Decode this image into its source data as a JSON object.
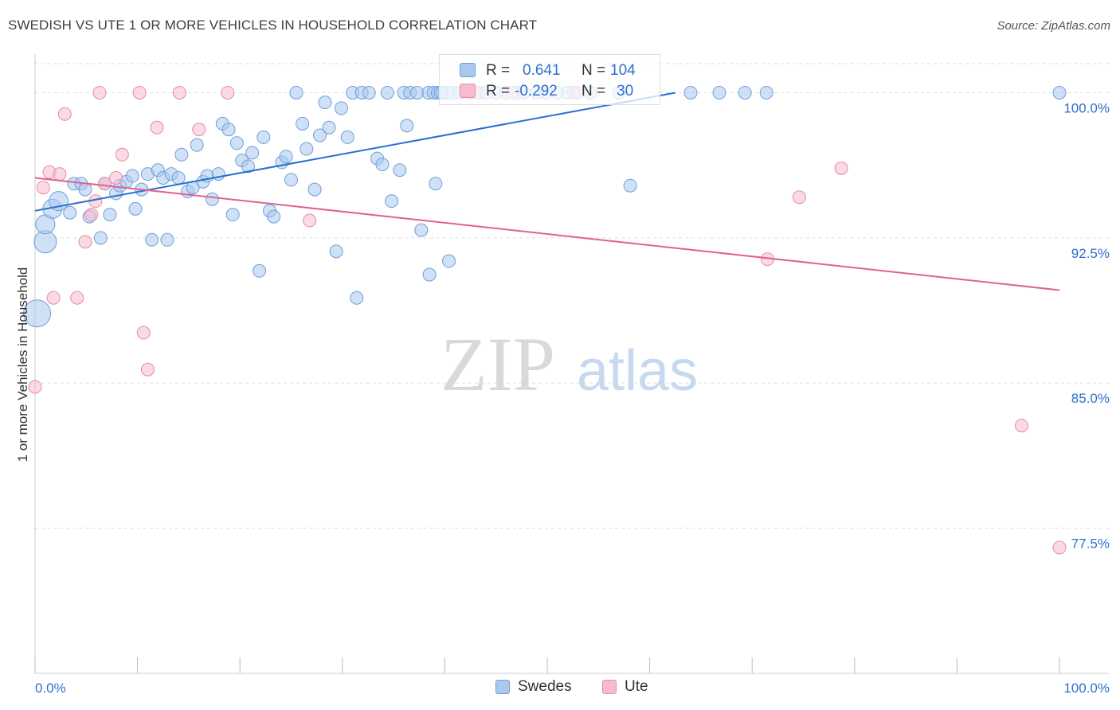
{
  "header": {
    "title": "SWEDISH VS UTE 1 OR MORE VEHICLES IN HOUSEHOLD CORRELATION CHART",
    "source": "Source: ZipAtlas.com"
  },
  "watermark": {
    "zip": "ZIP",
    "atlas": "atlas"
  },
  "stats": {
    "r_label": "R =",
    "n_label": "N =",
    "rows": [
      {
        "r": "0.641",
        "n": "104"
      },
      {
        "r": "-0.292",
        "n": "30"
      }
    ]
  },
  "legend": {
    "items": [
      "Swedes",
      "Ute"
    ]
  },
  "colors": {
    "swedes_fill": "#a9c8ee",
    "swedes_stroke": "#6e9fdc",
    "swedes_line": "#2a6fcf",
    "ute_fill": "#f6bccc",
    "ute_stroke": "#e98aa6",
    "ute_line": "#e0618e",
    "axis_text": "#2f6fce",
    "grid": "#dddddd"
  },
  "chart_data": {
    "type": "scatter",
    "title": "SWEDISH VS UTE 1 OR MORE VEHICLES IN HOUSEHOLD CORRELATION CHART",
    "xlabel": "",
    "ylabel": "1 or more Vehicles in Household",
    "xlim": [
      0,
      100
    ],
    "ylim": [
      70,
      101.5
    ],
    "x_tick_labels": [
      "0.0%",
      "100.0%"
    ],
    "y_ticks": [
      77.5,
      85.0,
      92.5,
      100.0
    ],
    "y_tick_labels": [
      "77.5%",
      "85.0%",
      "92.5%",
      "100.0%"
    ],
    "grid": true,
    "legend_position": "bottom-center",
    "series": [
      {
        "name": "Swedes",
        "trend": {
          "x": [
            0,
            62.5
          ],
          "y": [
            93.9,
            100.0
          ]
        },
        "points": [
          [
            1.0,
            92.3,
            3
          ],
          [
            0.2,
            88.6,
            4
          ],
          [
            1.0,
            93.2,
            2
          ],
          [
            1.7,
            94.0,
            2
          ],
          [
            2.3,
            94.4,
            2
          ],
          [
            3.4,
            93.8,
            1
          ],
          [
            3.8,
            95.3,
            1
          ],
          [
            4.5,
            95.3,
            1
          ],
          [
            4.9,
            95.0,
            1
          ],
          [
            5.3,
            93.6,
            1
          ],
          [
            6.4,
            92.5,
            1
          ],
          [
            6.8,
            95.3,
            1
          ],
          [
            7.3,
            93.7,
            1
          ],
          [
            7.9,
            94.8,
            1
          ],
          [
            8.3,
            95.2,
            1
          ],
          [
            8.9,
            95.4,
            1
          ],
          [
            9.5,
            95.7,
            1
          ],
          [
            9.8,
            94.0,
            1
          ],
          [
            10.4,
            95.0,
            1
          ],
          [
            11.0,
            95.8,
            1
          ],
          [
            11.4,
            92.4,
            1
          ],
          [
            12.0,
            96.0,
            1
          ],
          [
            12.5,
            95.6,
            1
          ],
          [
            12.9,
            92.4,
            1
          ],
          [
            13.3,
            95.8,
            1
          ],
          [
            14.0,
            95.6,
            1
          ],
          [
            14.3,
            96.8,
            1
          ],
          [
            14.9,
            94.9,
            1
          ],
          [
            15.4,
            95.1,
            1
          ],
          [
            15.8,
            97.3,
            1
          ],
          [
            16.4,
            95.4,
            1
          ],
          [
            16.8,
            95.7,
            1
          ],
          [
            17.3,
            94.5,
            1
          ],
          [
            17.9,
            95.8,
            1
          ],
          [
            18.3,
            98.4,
            1
          ],
          [
            18.9,
            98.1,
            1
          ],
          [
            19.3,
            93.7,
            1
          ],
          [
            19.7,
            97.4,
            1
          ],
          [
            20.2,
            96.5,
            1
          ],
          [
            20.8,
            96.2,
            1
          ],
          [
            21.2,
            96.9,
            1
          ],
          [
            21.9,
            90.8,
            1
          ],
          [
            22.3,
            97.7,
            1
          ],
          [
            22.9,
            93.9,
            1
          ],
          [
            23.3,
            93.6,
            1
          ],
          [
            24.1,
            96.4,
            1
          ],
          [
            24.5,
            96.7,
            1
          ],
          [
            25.0,
            95.5,
            1
          ],
          [
            25.5,
            100.0,
            1
          ],
          [
            26.1,
            98.4,
            1
          ],
          [
            26.5,
            97.1,
            1
          ],
          [
            27.3,
            95.0,
            1
          ],
          [
            27.8,
            97.8,
            1
          ],
          [
            28.3,
            99.5,
            1
          ],
          [
            28.7,
            98.2,
            1
          ],
          [
            29.4,
            91.8,
            1
          ],
          [
            29.9,
            99.2,
            1
          ],
          [
            30.5,
            97.7,
            1
          ],
          [
            31.0,
            100.0,
            1
          ],
          [
            31.4,
            89.4,
            1
          ],
          [
            31.9,
            100.0,
            1
          ],
          [
            32.6,
            100.0,
            1
          ],
          [
            33.4,
            96.6,
            1
          ],
          [
            33.9,
            96.3,
            1
          ],
          [
            34.4,
            100.0,
            1
          ],
          [
            34.8,
            94.4,
            1
          ],
          [
            35.6,
            96.0,
            1
          ],
          [
            36.0,
            100.0,
            1
          ],
          [
            36.3,
            98.3,
            1
          ],
          [
            36.6,
            100.0,
            1
          ],
          [
            37.3,
            100.0,
            1
          ],
          [
            37.7,
            92.9,
            1
          ],
          [
            38.4,
            100.0,
            1
          ],
          [
            38.9,
            100.0,
            1
          ],
          [
            39.3,
            100.0,
            1
          ],
          [
            39.8,
            100.0,
            1
          ],
          [
            40.2,
            100.0,
            1
          ],
          [
            40.8,
            100.0,
            1
          ],
          [
            41.5,
            100.0,
            1
          ],
          [
            42.5,
            100.0,
            1
          ],
          [
            43.3,
            100.0,
            1
          ],
          [
            44.0,
            100.0,
            1
          ],
          [
            45.0,
            100.0,
            1
          ],
          [
            46.0,
            100.0,
            1
          ],
          [
            47.0,
            100.0,
            1
          ],
          [
            47.7,
            100.0,
            1
          ],
          [
            49.0,
            100.0,
            1
          ],
          [
            49.9,
            100.0,
            1
          ],
          [
            51.0,
            100.0,
            1
          ],
          [
            52.0,
            100.0,
            1
          ],
          [
            53.0,
            100.0,
            1
          ],
          [
            54.2,
            100.0,
            1
          ],
          [
            57.0,
            100.0,
            1
          ],
          [
            64.0,
            100.0,
            1
          ],
          [
            66.8,
            100.0,
            1
          ],
          [
            69.3,
            100.0,
            1
          ],
          [
            71.4,
            100.0,
            1
          ],
          [
            100.0,
            100.0,
            1
          ],
          [
            38.5,
            90.6,
            1
          ],
          [
            39.6,
            100.0,
            1
          ],
          [
            40.4,
            91.3,
            1
          ],
          [
            39.1,
            95.3,
            1
          ],
          [
            58.1,
            95.2,
            1
          ],
          [
            52.6,
            100.0,
            1
          ]
        ]
      },
      {
        "name": "Ute",
        "trend": {
          "x": [
            0,
            100
          ],
          "y": [
            95.6,
            89.8
          ]
        },
        "points": [
          [
            0.0,
            84.8,
            1
          ],
          [
            0.8,
            95.1,
            1
          ],
          [
            1.4,
            95.9,
            1
          ],
          [
            1.8,
            89.4,
            1
          ],
          [
            2.4,
            95.8,
            1
          ],
          [
            2.9,
            98.9,
            1
          ],
          [
            4.1,
            89.4,
            1
          ],
          [
            4.9,
            92.3,
            1
          ],
          [
            5.5,
            93.7,
            1
          ],
          [
            5.9,
            94.4,
            1
          ],
          [
            6.3,
            100.0,
            1
          ],
          [
            6.8,
            95.3,
            1
          ],
          [
            7.9,
            95.6,
            1
          ],
          [
            8.5,
            96.8,
            1
          ],
          [
            10.2,
            100.0,
            1
          ],
          [
            10.6,
            87.6,
            1
          ],
          [
            11.0,
            85.7,
            1
          ],
          [
            11.9,
            98.2,
            1
          ],
          [
            14.1,
            100.0,
            1
          ],
          [
            16.0,
            98.1,
            1
          ],
          [
            18.8,
            100.0,
            1
          ],
          [
            26.8,
            93.4,
            1
          ],
          [
            43.0,
            100.0,
            1
          ],
          [
            46.6,
            100.0,
            1
          ],
          [
            53.0,
            100.0,
            1
          ],
          [
            71.5,
            91.4,
            1
          ],
          [
            74.6,
            94.6,
            1
          ],
          [
            78.7,
            96.1,
            1
          ],
          [
            96.3,
            82.8,
            1
          ],
          [
            100.0,
            76.5,
            1
          ]
        ]
      }
    ]
  }
}
